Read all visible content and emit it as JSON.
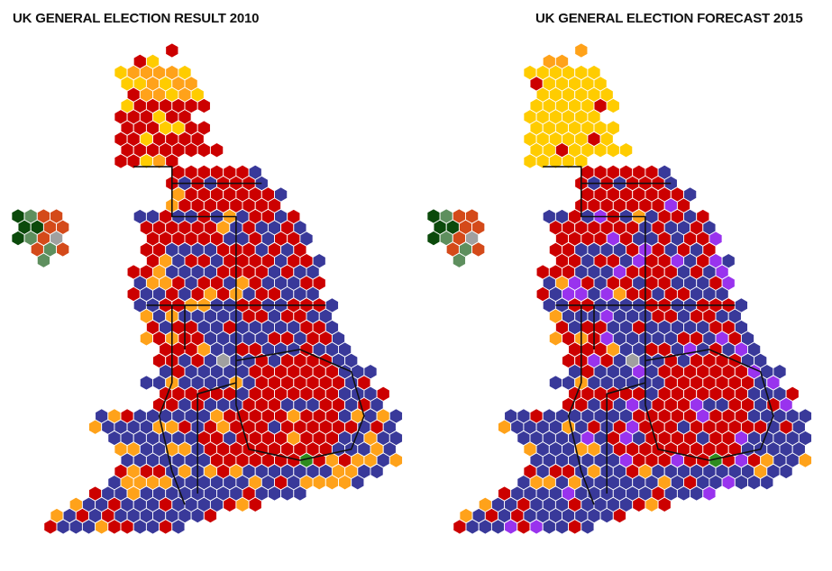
{
  "titles": {
    "left": "UK GENERAL ELECTION RESULT 2010",
    "right": "UK GENERAL ELECTION FORECAST 2015"
  },
  "party_colors": {
    "conservative": "#39399a",
    "labour": "#cc0000",
    "libdem": "#ffa21a",
    "snp": "#ffcc00",
    "ukip": "#9933ee",
    "green": "#2e8b1f",
    "northern_ireland_dark": "#0b4a0b",
    "northern_ireland_mid": "#5e8f5e",
    "northern_ireland_orange": "#d44a1a",
    "speaker": "#a0a0a0"
  },
  "maps": [
    "result-2010",
    "forecast-2015"
  ]
}
